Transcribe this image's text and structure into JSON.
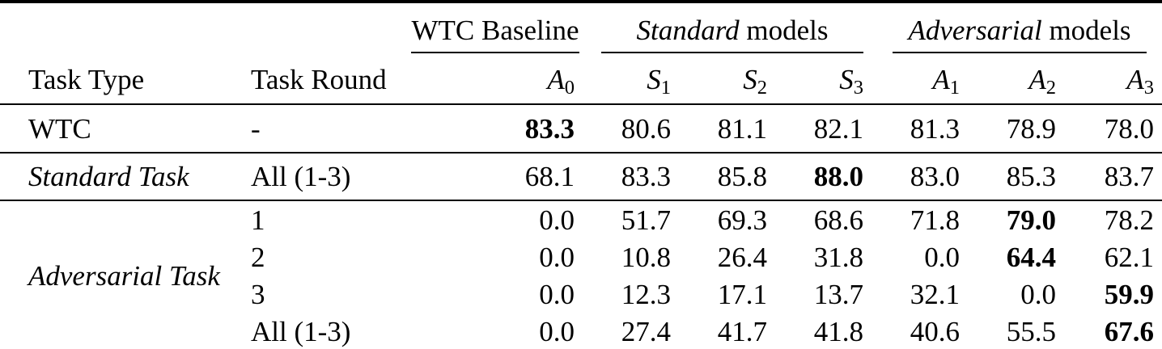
{
  "table": {
    "headers": {
      "task_type": "Task Type",
      "task_round": "Task Round",
      "groups": [
        {
          "italic": "",
          "normal": "WTC Baseline"
        },
        {
          "italic": "Standard",
          "normal": " models"
        },
        {
          "italic": "Adversarial",
          "normal": " models"
        }
      ],
      "models": [
        {
          "letter": "A",
          "sub": "0"
        },
        {
          "letter": "S",
          "sub": "1"
        },
        {
          "letter": "S",
          "sub": "2"
        },
        {
          "letter": "S",
          "sub": "3"
        },
        {
          "letter": "A",
          "sub": "1"
        },
        {
          "letter": "A",
          "sub": "2"
        },
        {
          "letter": "A",
          "sub": "3"
        }
      ]
    },
    "rows": {
      "wtc": {
        "task_type": "WTC",
        "task_round": "-",
        "values": [
          "83.3",
          "80.6",
          "81.1",
          "82.1",
          "81.3",
          "78.9",
          "78.0"
        ]
      },
      "standard": {
        "task_type": "Standard Task",
        "task_round": "All (1-3)",
        "values": [
          "68.1",
          "83.3",
          "85.8",
          "88.0",
          "83.0",
          "85.3",
          "83.7"
        ]
      },
      "adversarial": {
        "task_type": "Adversarial Task",
        "subrows": [
          {
            "task_round": "1",
            "values": [
              "0.0",
              "51.7",
              "69.3",
              "68.6",
              "71.8",
              "79.0",
              "78.2"
            ]
          },
          {
            "task_round": "2",
            "values": [
              "0.0",
              "10.8",
              "26.4",
              "31.8",
              "0.0",
              "64.4",
              "62.1"
            ]
          },
          {
            "task_round": "3",
            "values": [
              "0.0",
              "12.3",
              "17.1",
              "13.7",
              "32.1",
              "0.0",
              "59.9"
            ]
          },
          {
            "task_round": "All (1-3)",
            "values": [
              "0.0",
              "27.4",
              "41.7",
              "41.8",
              "40.6",
              "55.5",
              "67.6"
            ]
          }
        ]
      }
    },
    "colors": {
      "text": "#000000",
      "background": "#ffffff",
      "rule": "#000000"
    }
  }
}
